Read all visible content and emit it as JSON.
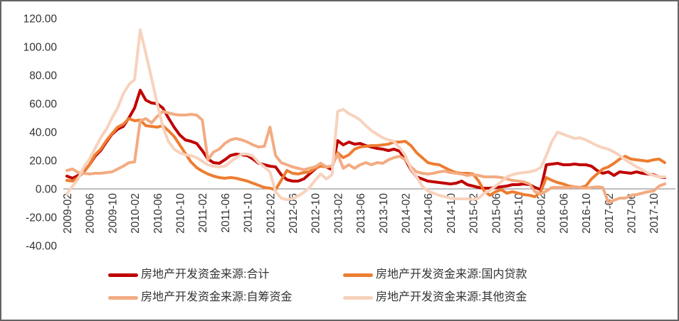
{
  "chart_data": {
    "type": "line",
    "title": "",
    "x_start": "2009-02",
    "x_frequency": "monthly",
    "x_tick_labels": [
      "2009-02",
      "2009-06",
      "2009-10",
      "2010-02",
      "2010-06",
      "2010-10",
      "2011-02",
      "2011-06",
      "2011-10",
      "2012-02",
      "2012-06",
      "2012-10",
      "2013-02",
      "2013-06",
      "2013-10",
      "2014-02",
      "2014-06",
      "2014-10",
      "2015-02",
      "2015-06",
      "2015-10",
      "2016-02",
      "2016-06",
      "2016-10",
      "2017-02",
      "2017-06",
      "2017-10"
    ],
    "y_tick_labels": [
      "120.00",
      "100.00",
      "80.00",
      "60.00",
      "40.00",
      "20.00",
      "0.00",
      "-20.00",
      "-40.00"
    ],
    "ylim": [
      -40,
      120
    ],
    "grid": false,
    "legend_position": "bottom",
    "axis_line_color": "#999999",
    "label_color": "#333333",
    "series": [
      {
        "name": "房地产开发资金来源:合计",
        "color": "#C00000",
        "width": 4,
        "values": [
          9,
          7.5,
          9.5,
          12,
          17,
          23,
          27,
          33,
          38.5,
          42,
          44,
          50,
          57,
          69.5,
          62.5,
          60.5,
          60,
          57,
          50,
          43.5,
          38,
          34.5,
          33.5,
          32,
          27,
          21,
          18.5,
          18,
          20.5,
          23.5,
          24.5,
          24,
          23.5,
          21,
          18,
          17,
          16,
          15.5,
          10,
          6.5,
          5.5,
          5.5,
          7,
          10.5,
          14,
          17,
          15.5,
          13.5,
          34,
          31,
          33,
          31.5,
          32,
          30.5,
          29.5,
          28.5,
          28,
          27,
          28,
          26.5,
          20.5,
          13.5,
          8.5,
          7,
          5.5,
          5,
          4.5,
          4,
          3.5,
          4,
          5.5,
          3,
          2,
          1,
          0.5,
          0.5,
          1,
          1.5,
          2,
          3,
          3,
          3.5,
          3,
          1,
          -0.5,
          17,
          17.5,
          18,
          17,
          17,
          17.5,
          17,
          17,
          16,
          13,
          11,
          12,
          9.5,
          12,
          11.5,
          11,
          12,
          11,
          10.5,
          10,
          8.5,
          8
        ]
      },
      {
        "name": "房地产开发资金来源:国内贷款",
        "color": "#ED7D31",
        "width": 4,
        "values": [
          6,
          5.5,
          8,
          12,
          17,
          24,
          28,
          34,
          39,
          43.5,
          45.5,
          49.5,
          48,
          48.5,
          44.5,
          44,
          43.5,
          44.5,
          41,
          37,
          31,
          25,
          19,
          15,
          12.5,
          10.5,
          9,
          8,
          7.5,
          8,
          7.5,
          6.5,
          5.5,
          4,
          2.5,
          1,
          0.5,
          -0.5,
          6,
          13,
          11,
          10.5,
          11.5,
          12,
          14.5,
          16,
          15.5,
          16,
          25.5,
          22,
          24,
          28,
          29.5,
          30,
          30.5,
          30.5,
          31,
          31.5,
          33,
          33,
          33.5,
          30.5,
          25.5,
          22,
          18.5,
          17.5,
          17,
          15,
          13,
          11.5,
          11,
          11,
          10.5,
          5.5,
          -1.5,
          -4.5,
          -2,
          -0.5,
          -3,
          -2,
          -3,
          -4,
          -4.5,
          -5.5,
          -2,
          8,
          6,
          4.5,
          3.5,
          2,
          1.5,
          1,
          2,
          7,
          10.5,
          14,
          15.5,
          18,
          21,
          23,
          21,
          20.5,
          20,
          19.5,
          20.5,
          21,
          18.5
        ]
      },
      {
        "name": "房地产开发资金来源:自筹资金",
        "color": "#F3AB81",
        "width": 4,
        "values": [
          13,
          14,
          11.5,
          11,
          10.5,
          11,
          11,
          11.5,
          12,
          14,
          16,
          18.5,
          19,
          48,
          49.5,
          46.5,
          51,
          54.5,
          53.5,
          52.5,
          52,
          52,
          52.5,
          52,
          48.5,
          20.5,
          26,
          28,
          32,
          34.5,
          35.5,
          34.5,
          33,
          31,
          29.5,
          30,
          43.5,
          23.5,
          18.5,
          17,
          15.5,
          14.5,
          13.5,
          14.5,
          15.5,
          18,
          15.5,
          16,
          24.5,
          14.5,
          17,
          14.5,
          17,
          18.5,
          17,
          18.5,
          18,
          20.5,
          22,
          23,
          20.5,
          15.5,
          12,
          11,
          10.5,
          11,
          12,
          12.5,
          11.5,
          11,
          10.5,
          9.5,
          10,
          9.5,
          8.5,
          8.5,
          8.5,
          8,
          7,
          6,
          5.5,
          5,
          3.5,
          -2,
          -3.5,
          -1.5,
          1,
          1,
          1,
          1,
          1.5,
          1,
          0.5,
          1,
          1.5,
          1,
          -9.5,
          -8,
          -6.5,
          -6.5,
          -4.5,
          -4,
          -3,
          -2,
          -1.5,
          2,
          3.5
        ]
      },
      {
        "name": "房地产开发资金来源:其他资金",
        "color": "#F7D2BD",
        "width": 4,
        "values": [
          -3.5,
          2,
          7,
          15.5,
          21,
          28.5,
          36,
          42,
          50,
          57,
          67,
          73.5,
          77,
          112,
          95.5,
          78,
          60,
          44,
          33.5,
          28,
          25.5,
          24,
          23.5,
          22,
          19.5,
          17,
          16,
          15.5,
          16,
          19,
          22,
          24.5,
          24.5,
          23,
          18.5,
          15.5,
          12,
          -2,
          -6.5,
          -7.5,
          -7,
          -5,
          -2.5,
          1,
          6,
          10.5,
          7,
          10,
          54.5,
          56,
          53,
          51,
          48.5,
          44.5,
          41,
          38.5,
          36,
          34.5,
          33.5,
          29,
          23.5,
          14,
          8.5,
          2,
          -1.5,
          -3,
          -4.5,
          -5.5,
          -6.5,
          -7,
          -7,
          -7,
          -7.5,
          -6.5,
          -3,
          -1,
          2,
          5,
          8.5,
          10,
          11,
          11.5,
          12,
          13,
          15,
          23.5,
          33.5,
          40,
          38.5,
          37,
          35.5,
          36,
          34.5,
          32.5,
          30.5,
          29,
          28,
          26,
          23.5,
          20.5,
          18,
          15.5,
          13.5,
          11,
          9.5,
          8.5,
          8.5
        ]
      }
    ]
  },
  "legend": {
    "items": [
      {
        "label": "房地产开发资金来源:合计"
      },
      {
        "label": "房地产开发资金来源:国内贷款"
      },
      {
        "label": "房地产开发资金来源:自筹资金"
      },
      {
        "label": "房地产开发资金来源:其他资金"
      }
    ]
  }
}
